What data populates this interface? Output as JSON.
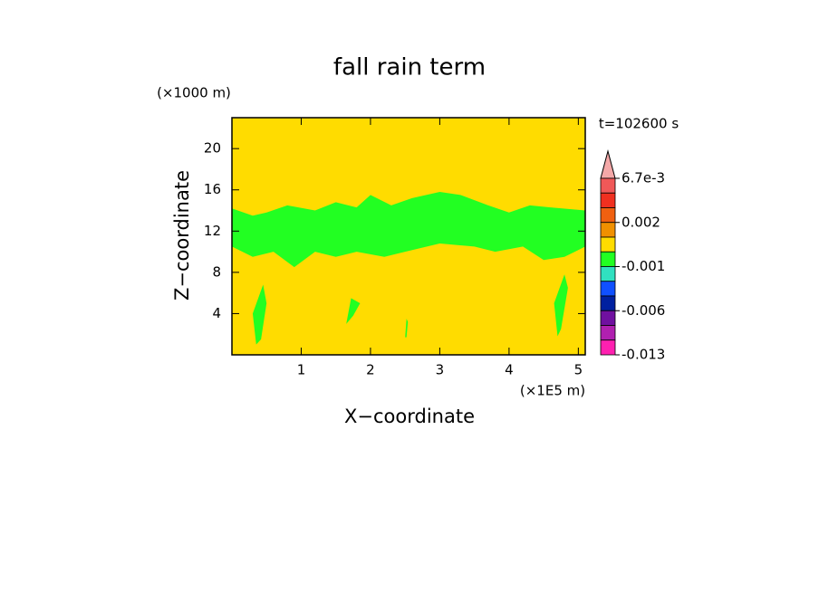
{
  "chart_data": {
    "type": "contour",
    "title": "fall rain term",
    "x_label": "X−coordinate",
    "y_label": "Z−coordinate",
    "x_unit": "(×1E5 m)",
    "y_unit": "(×1000 m)",
    "annotation": "t=102600 s",
    "xlim": [
      0,
      5.1
    ],
    "ylim": [
      0,
      23
    ],
    "xticks": [
      1,
      2,
      3,
      4,
      5
    ],
    "yticks": [
      4,
      8,
      12,
      16,
      20
    ],
    "background_color": "#ffdc00",
    "regions": [
      {
        "color": "#22ff22",
        "x": [
          0,
          0.3,
          0.5,
          0.8,
          1.2,
          1.5,
          1.8,
          2.0,
          2.3,
          2.6,
          3.0,
          3.3,
          3.7,
          4.0,
          4.3,
          4.6,
          5.1,
          5.1,
          4.8,
          4.5,
          4.2,
          3.8,
          3.5,
          3.0,
          2.5,
          2.2,
          1.8,
          1.5,
          1.2,
          0.9,
          0.6,
          0.3,
          0
        ],
        "y": [
          14.2,
          13.5,
          13.8,
          14.5,
          14.0,
          14.8,
          14.3,
          15.5,
          14.5,
          15.2,
          15.8,
          15.5,
          14.5,
          13.8,
          14.5,
          14.3,
          14.0,
          10.5,
          9.5,
          9.2,
          10.5,
          10.0,
          10.5,
          10.8,
          10.0,
          9.5,
          10.0,
          9.5,
          10.0,
          8.5,
          10.0,
          9.5,
          10.5
        ]
      },
      {
        "color": "#22ff22",
        "x": [
          0.35,
          0.3,
          0.45,
          0.5,
          0.42
        ],
        "y": [
          1.0,
          4.0,
          6.8,
          5.0,
          1.5
        ]
      },
      {
        "color": "#22ff22",
        "x": [
          1.65,
          1.72,
          1.85,
          1.75
        ],
        "y": [
          3.0,
          5.5,
          5.0,
          3.8
        ]
      },
      {
        "color": "#22ff22",
        "x": [
          2.5,
          2.52,
          2.54,
          2.52
        ],
        "y": [
          1.7,
          3.5,
          3.2,
          1.7
        ]
      },
      {
        "color": "#22ff22",
        "x": [
          4.7,
          4.65,
          4.8,
          4.85,
          4.75
        ],
        "y": [
          1.8,
          5.0,
          7.8,
          6.5,
          2.5
        ]
      }
    ],
    "colorbar": {
      "levels": [
        0.0067,
        0.006,
        0.004,
        0.002,
        0.001,
        0,
        -0.001,
        -0.002,
        -0.004,
        -0.006,
        -0.008,
        -0.01,
        -0.013
      ],
      "colors": [
        "#f05858",
        "#f03020",
        "#f06010",
        "#f09000",
        "#ffdc00",
        "#22ff22",
        "#30e0c0",
        "#1050ff",
        "#0020a0",
        "#7010a0",
        "#b020b0",
        "#ff20b0"
      ],
      "over_color": "#f4a8a8",
      "ticks": [
        {
          "value": 0.0067,
          "label": "6.7e-3"
        },
        0.002,
        -0.001,
        -0.006,
        -0.013
      ]
    }
  }
}
